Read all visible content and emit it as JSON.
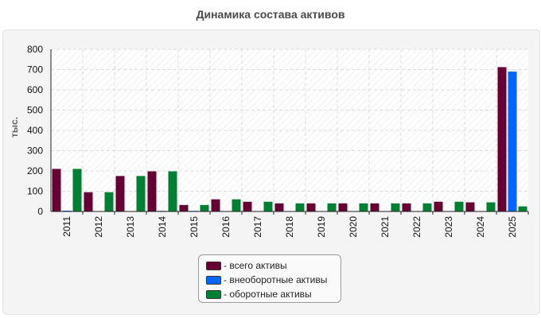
{
  "title": "Динамика состава активов",
  "chart_data": {
    "type": "bar",
    "title": "Динамика состава активов",
    "xlabel": "",
    "ylabel": "тыс.",
    "ylim": [
      0,
      800
    ],
    "yticks": [
      0,
      100,
      200,
      300,
      400,
      500,
      600,
      700,
      800
    ],
    "grid": true,
    "legend_position": "bottom",
    "categories": [
      "2011",
      "2012",
      "2013",
      "2014",
      "2015",
      "2016",
      "2017",
      "2018",
      "2019",
      "2020",
      "2021",
      "2022",
      "2023",
      "2024",
      "2025"
    ],
    "series": [
      {
        "name": "- всего активы",
        "color": "#660033",
        "values": [
          210,
          95,
          175,
          198,
          32,
          60,
          48,
          40,
          40,
          40,
          40,
          40,
          48,
          45,
          712
        ]
      },
      {
        "name": "- внеоборотные активы",
        "color": "#0066ff",
        "values": [
          4,
          2,
          2,
          3,
          3,
          2,
          1,
          1,
          1,
          2,
          2,
          2,
          1,
          1,
          690
        ]
      },
      {
        "name": "- оборотные активы",
        "color": "#008033",
        "values": [
          210,
          95,
          175,
          198,
          32,
          60,
          48,
          40,
          40,
          40,
          40,
          40,
          48,
          45,
          25
        ]
      }
    ]
  }
}
